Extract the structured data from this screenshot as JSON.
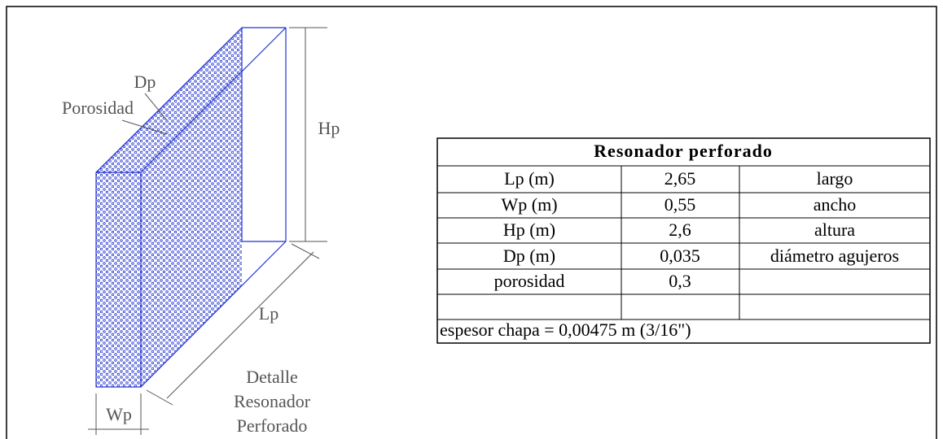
{
  "diagram": {
    "labels": {
      "dp": "Dp",
      "porosidad": "Porosidad",
      "hp": "Hp",
      "lp": "Lp",
      "wp": "Wp",
      "caption": [
        "Detalle",
        "Resonador",
        "Perforado"
      ]
    }
  },
  "table": {
    "title": "Resonador perforado",
    "rows": [
      [
        "Lp (m)",
        "2,65",
        "largo"
      ],
      [
        "Wp (m)",
        "0,55",
        "ancho"
      ],
      [
        "Hp (m)",
        "2,6",
        "altura"
      ],
      [
        "Dp (m)",
        "0,035",
        "diámetro agujeros"
      ],
      [
        "porosidad",
        "0,3"
      ]
    ],
    "note": "espesor chapa = 0,00475 m (3/16\")"
  }
}
